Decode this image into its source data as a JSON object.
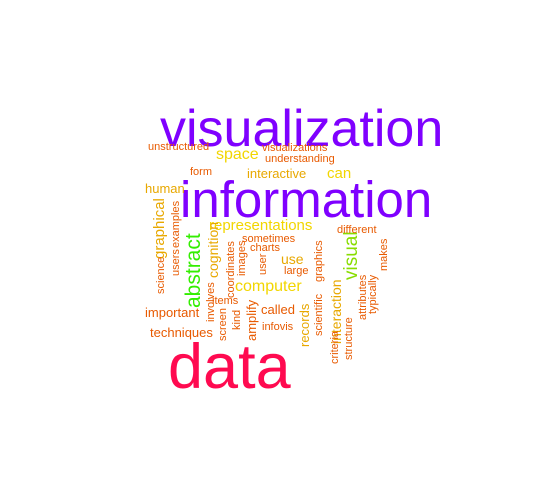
{
  "word_cloud": {
    "words": [
      {
        "text": "visualization",
        "color": "#7f00ff"
      },
      {
        "text": "information",
        "color": "#7f00ff"
      },
      {
        "text": "data",
        "color": "#ff0a50"
      },
      {
        "text": "abstract",
        "color": "#33ee00"
      },
      {
        "text": "visual",
        "color": "#88dd00"
      },
      {
        "text": "space",
        "color": "#f2d600"
      },
      {
        "text": "can",
        "color": "#f2d600"
      },
      {
        "text": "computer",
        "color": "#f2d600"
      },
      {
        "text": "representations",
        "color": "#f2d600"
      },
      {
        "text": "graphical",
        "color": "#e8a800"
      },
      {
        "text": "human",
        "color": "#e8a800"
      },
      {
        "text": "cognition",
        "color": "#e8a800"
      },
      {
        "text": "use",
        "color": "#e8a800"
      },
      {
        "text": "interaction",
        "color": "#e8a800"
      },
      {
        "text": "records",
        "color": "#e8a800"
      },
      {
        "text": "interactive",
        "color": "#e8a800"
      },
      {
        "text": "unstructured",
        "color": "#e85a00"
      },
      {
        "text": "visualizations",
        "color": "#e85a00"
      },
      {
        "text": "understanding",
        "color": "#e85a00"
      },
      {
        "text": "form",
        "color": "#e85a00"
      },
      {
        "text": "examples",
        "color": "#e85a00"
      },
      {
        "text": "science",
        "color": "#e85a00"
      },
      {
        "text": "users",
        "color": "#e85a00"
      },
      {
        "text": "involves",
        "color": "#e85a00"
      },
      {
        "text": "coordinates",
        "color": "#e85a00"
      },
      {
        "text": "images",
        "color": "#e85a00"
      },
      {
        "text": "user",
        "color": "#e85a00"
      },
      {
        "text": "sometimes",
        "color": "#e85a00"
      },
      {
        "text": "charts",
        "color": "#e85a00"
      },
      {
        "text": "large",
        "color": "#e85a00"
      },
      {
        "text": "graphics",
        "color": "#e85a00"
      },
      {
        "text": "different",
        "color": "#e85a00"
      },
      {
        "text": "important",
        "color": "#e85a00"
      },
      {
        "text": "items",
        "color": "#e85a00"
      },
      {
        "text": "screen",
        "color": "#e85a00"
      },
      {
        "text": "kind",
        "color": "#e85a00"
      },
      {
        "text": "amplify",
        "color": "#e85a00"
      },
      {
        "text": "called",
        "color": "#e85a00"
      },
      {
        "text": "infovis",
        "color": "#e85a00"
      },
      {
        "text": "techniques",
        "color": "#e85a00"
      },
      {
        "text": "scientific",
        "color": "#e85a00"
      },
      {
        "text": "criteria",
        "color": "#e85a00"
      },
      {
        "text": "structure",
        "color": "#e85a00"
      },
      {
        "text": "attributes",
        "color": "#e85a00"
      },
      {
        "text": "typically",
        "color": "#e85a00"
      },
      {
        "text": "makes",
        "color": "#e85a00"
      }
    ]
  }
}
